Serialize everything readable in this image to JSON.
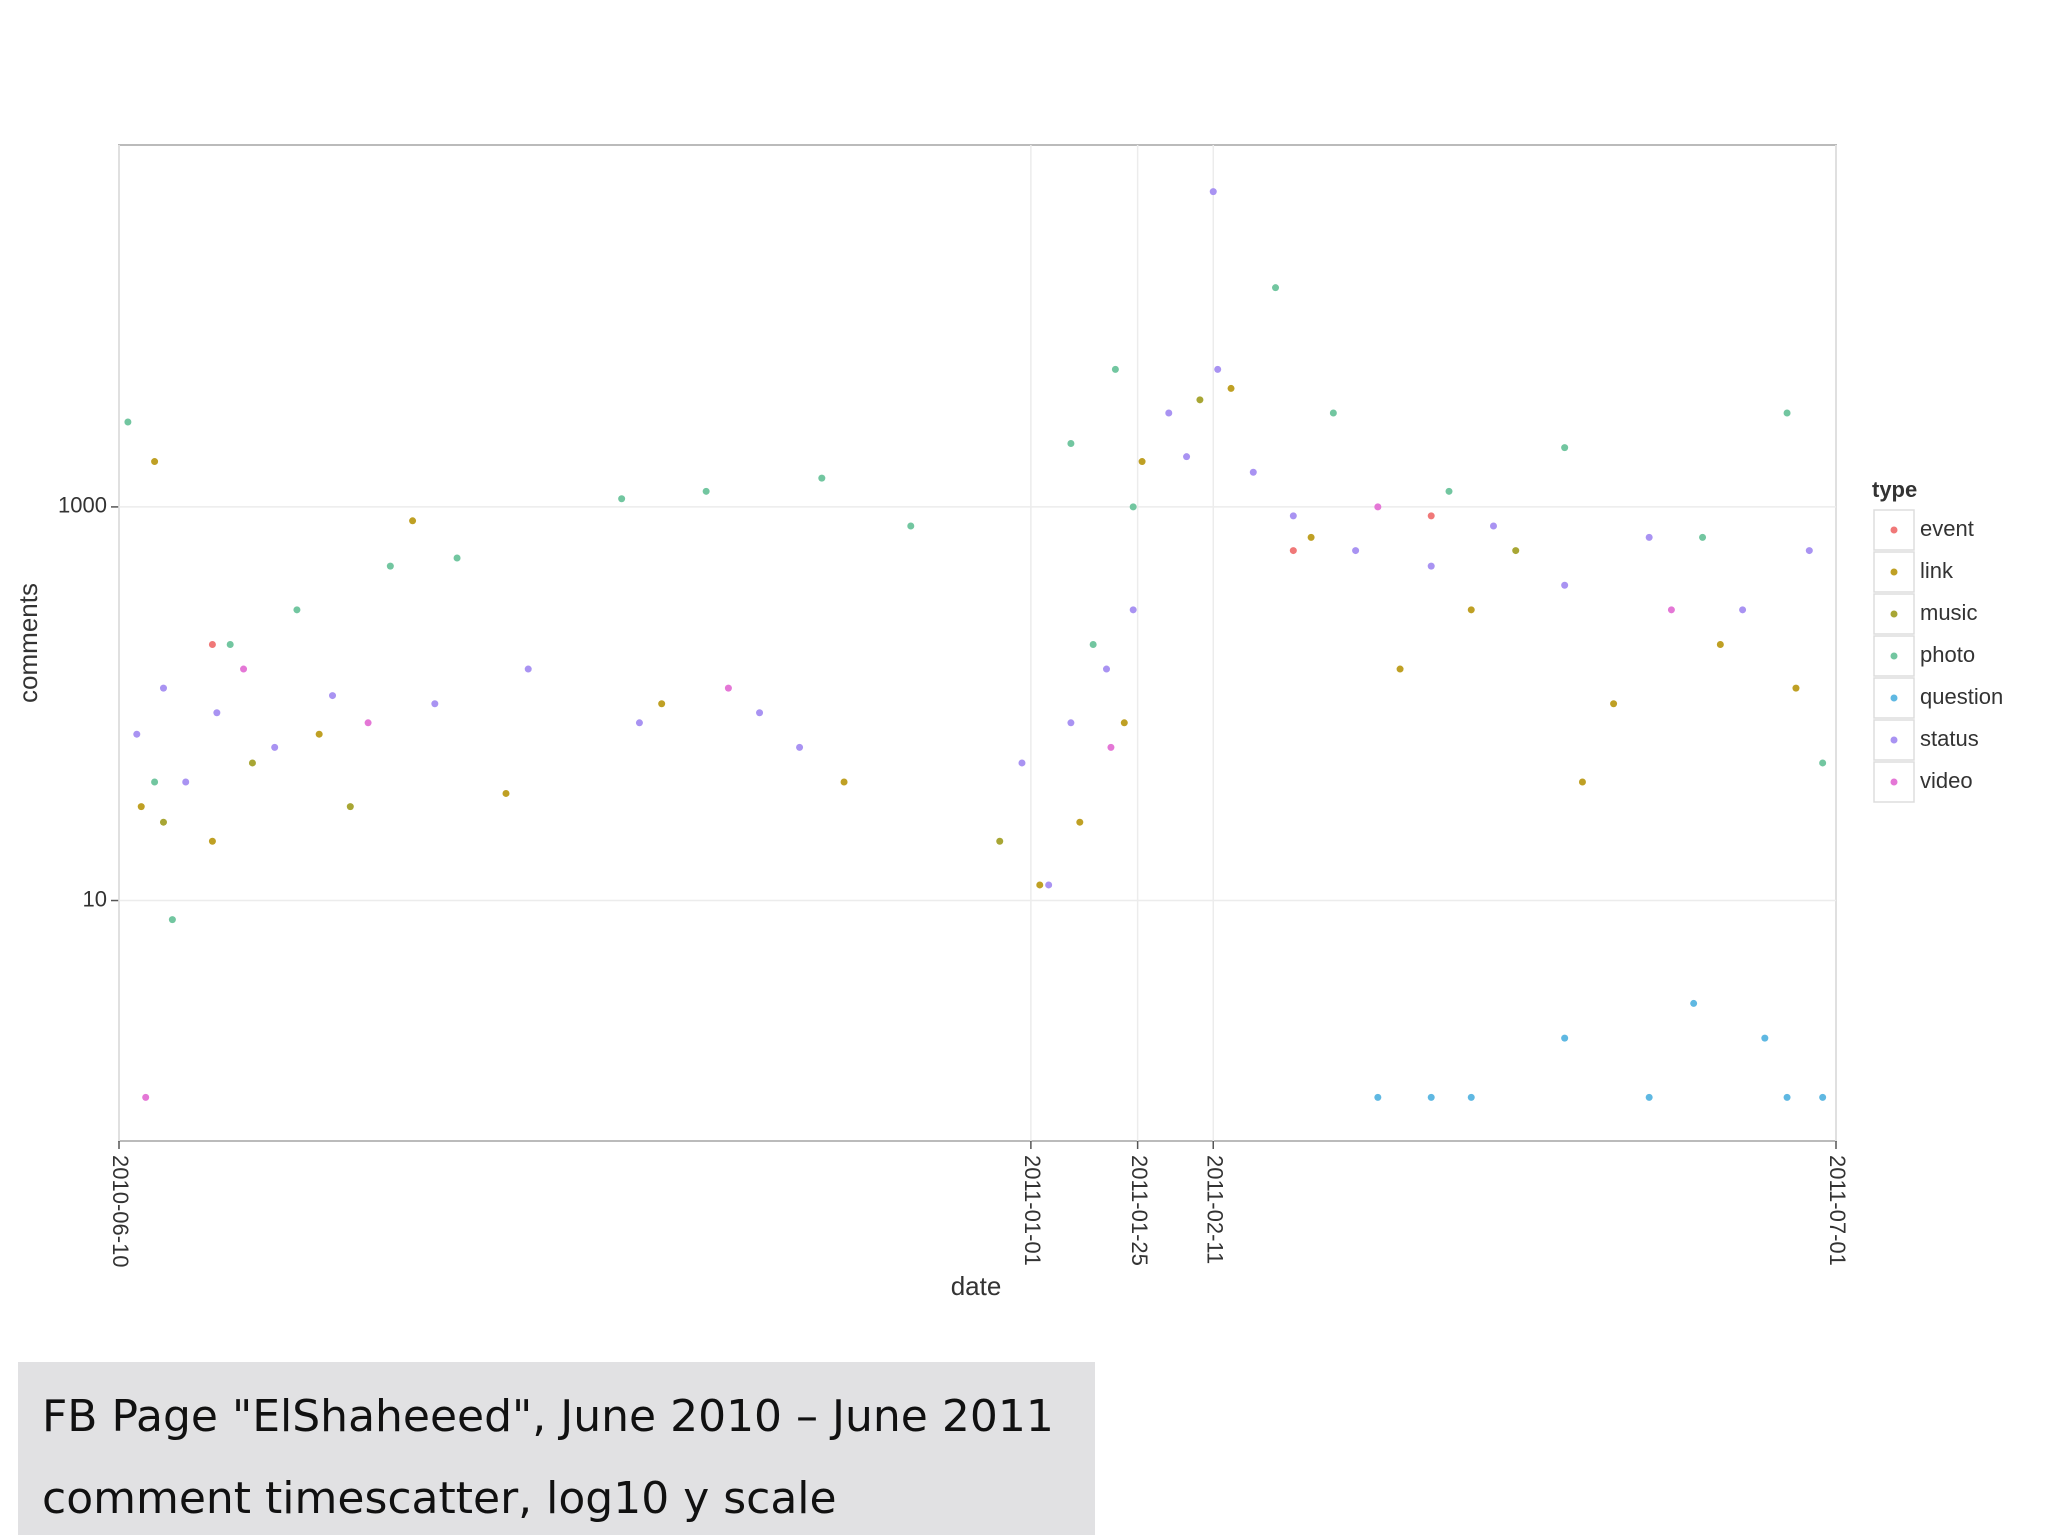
{
  "chart_data": {
    "type": "scatter",
    "title": "FB Page \"ElShaheeed\", June 2010 – June 2011",
    "subtitle": "comment timescatter, log10 y scale",
    "x_label": "date",
    "y_label": "comments",
    "legend_title": "type",
    "log_y": true,
    "grid": true,
    "legend": "right",
    "xlim": [
      "2010-06-10",
      "2011-07-01"
    ],
    "xticks": [
      "2010-06-10",
      "2011-01-01",
      "2011-01-25",
      "2011-02-11",
      "2011-07-01"
    ],
    "ylim": [
      0.6,
      69000
    ],
    "yticks": [
      10,
      1000
    ],
    "series": [
      {
        "name": "event",
        "color": "#f07878",
        "x": [
          "2010-07-01",
          "2011-03-01",
          "2011-04-01"
        ],
        "values": [
          200,
          600,
          900
        ]
      },
      {
        "name": "link",
        "color": "#bfa024",
        "x": [
          "2010-06-15",
          "2010-06-18",
          "2010-07-01",
          "2010-07-25",
          "2010-08-15",
          "2010-09-05",
          "2010-10-10",
          "2010-11-20",
          "2011-01-03",
          "2011-01-12",
          "2011-01-22",
          "2011-01-26",
          "2011-02-15",
          "2011-03-05",
          "2011-03-25",
          "2011-04-10",
          "2011-05-05",
          "2011-05-12",
          "2011-06-05",
          "2011-06-22"
        ],
        "values": [
          30,
          1700,
          20,
          70,
          850,
          35,
          100,
          40,
          12,
          25,
          80,
          1700,
          4000,
          700,
          150,
          300,
          40,
          100,
          200,
          120
        ]
      },
      {
        "name": "music",
        "color": "#a8a634",
        "x": [
          "2010-06-20",
          "2010-07-10",
          "2010-08-01",
          "2010-12-25",
          "2011-02-08",
          "2011-04-20"
        ],
        "values": [
          25,
          50,
          30,
          20,
          3500,
          600
        ]
      },
      {
        "name": "photo",
        "color": "#72c6a0",
        "x": [
          "2010-06-12",
          "2010-06-18",
          "2010-06-22",
          "2010-07-05",
          "2010-07-20",
          "2010-08-10",
          "2010-08-25",
          "2010-10-01",
          "2010-10-20",
          "2010-11-15",
          "2010-12-05",
          "2011-01-10",
          "2011-01-15",
          "2011-01-20",
          "2011-01-24",
          "2011-02-25",
          "2011-03-10",
          "2011-04-05",
          "2011-05-01",
          "2011-06-01",
          "2011-06-20",
          "2011-06-28"
        ],
        "values": [
          2700,
          40,
          8,
          200,
          300,
          500,
          550,
          1100,
          1200,
          1400,
          800,
          2100,
          200,
          5000,
          1000,
          13000,
          3000,
          1200,
          2000,
          700,
          3000,
          50
        ]
      },
      {
        "name": "question",
        "color": "#5fb8e2",
        "x": [
          "2011-03-20",
          "2011-04-01",
          "2011-04-10",
          "2011-05-01",
          "2011-05-20",
          "2011-05-30",
          "2011-06-15",
          "2011-06-20",
          "2011-06-28"
        ],
        "values": [
          1,
          1,
          1,
          2,
          1,
          3,
          2,
          1,
          1
        ]
      },
      {
        "name": "status",
        "color": "#a993f2",
        "x": [
          "2010-06-14",
          "2010-06-20",
          "2010-06-25",
          "2010-07-02",
          "2010-07-15",
          "2010-07-28",
          "2010-08-20",
          "2010-09-10",
          "2010-10-05",
          "2010-11-01",
          "2010-11-10",
          "2010-12-30",
          "2011-01-05",
          "2011-01-10",
          "2011-01-18",
          "2011-01-24",
          "2011-02-01",
          "2011-02-05",
          "2011-02-11",
          "2011-02-12",
          "2011-02-20",
          "2011-03-01",
          "2011-03-15",
          "2011-04-01",
          "2011-04-15",
          "2011-05-01",
          "2011-05-20",
          "2011-06-10",
          "2011-06-25"
        ],
        "values": [
          70,
          120,
          40,
          90,
          60,
          110,
          100,
          150,
          80,
          90,
          60,
          50,
          12,
          80,
          150,
          300,
          3000,
          1800,
          40000,
          5000,
          1500,
          900,
          600,
          500,
          800,
          400,
          700,
          300,
          600
        ]
      },
      {
        "name": "video",
        "color": "#e477d6",
        "x": [
          "2010-06-16",
          "2010-07-08",
          "2010-08-05",
          "2010-10-25",
          "2011-01-19",
          "2011-03-20",
          "2011-05-25"
        ],
        "values": [
          1,
          150,
          80,
          120,
          60,
          1000,
          300
        ]
      }
    ]
  }
}
